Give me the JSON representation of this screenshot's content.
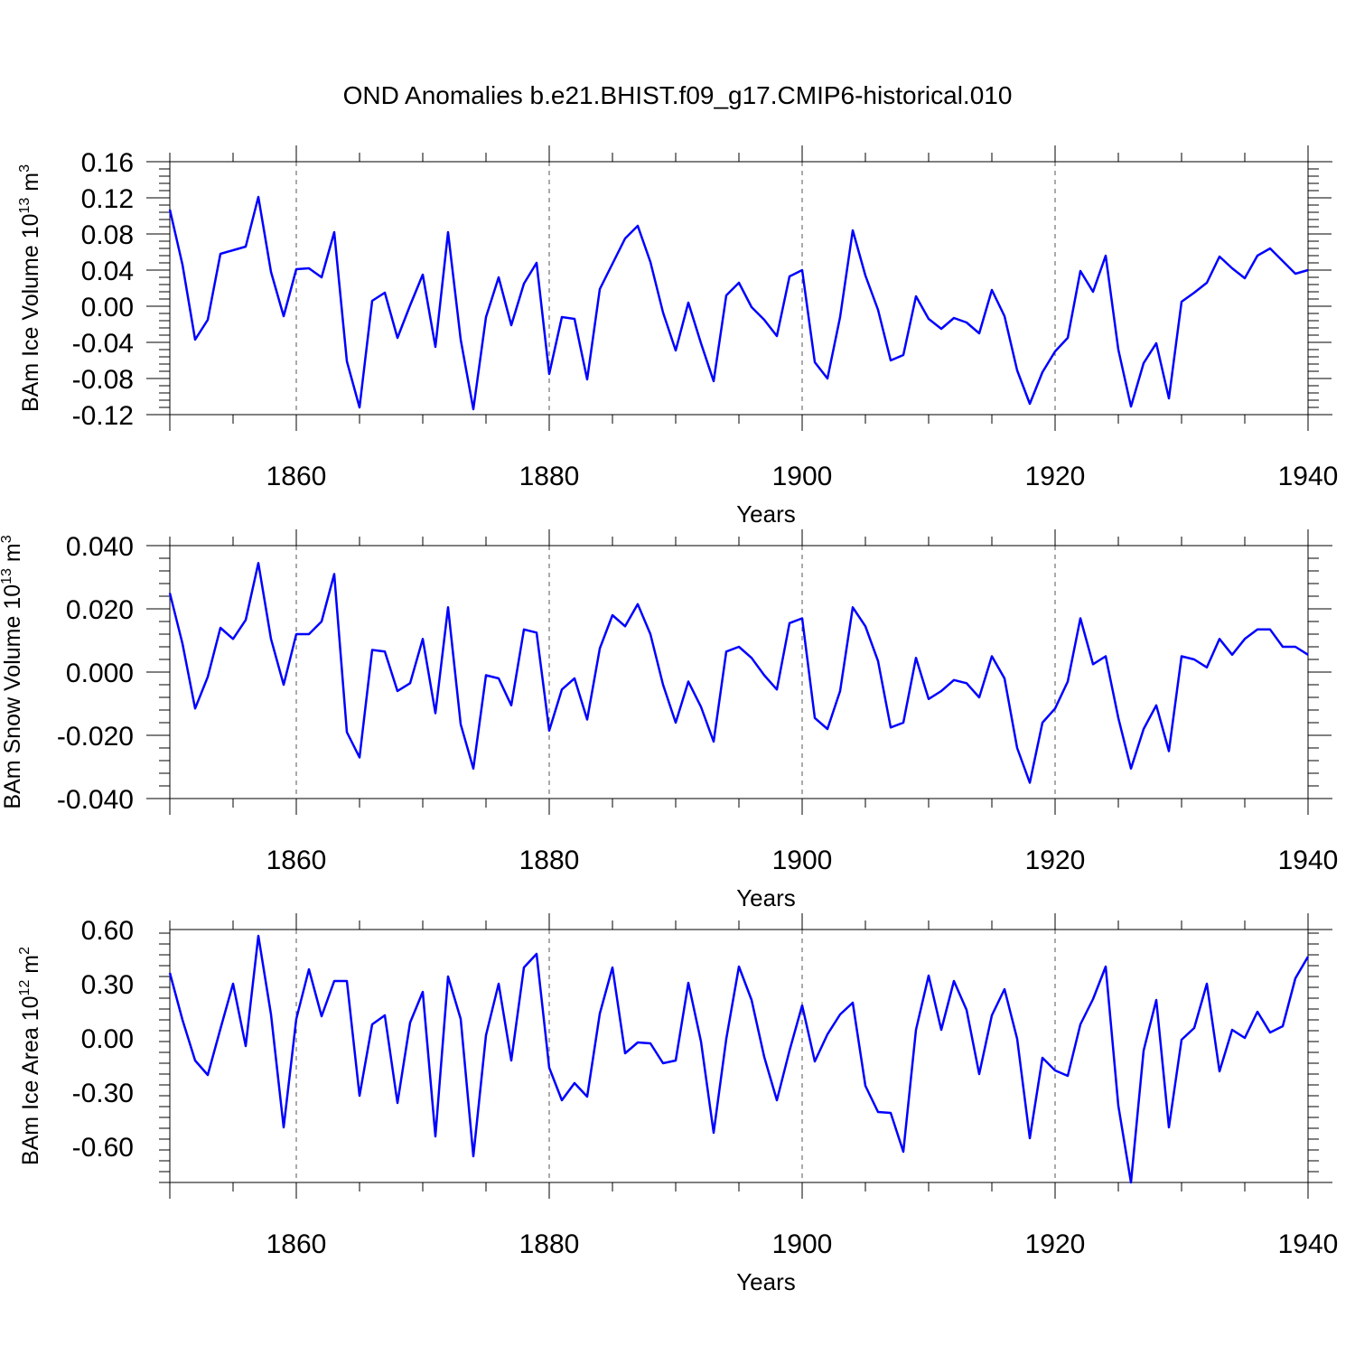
{
  "figure_title": "OND Anomalies b.e21.BHIST.f09_g17.CMIP6-historical.010",
  "colors": {
    "line": "#0000ff",
    "axis": "#000000",
    "grid": "#555555"
  },
  "chart_data": [
    {
      "type": "line",
      "ylabel": "BAm Ice Volume",
      "ylabel_unit": "10",
      "ylabel_exp": "13",
      "ylabel_unit2": "m",
      "ylabel_exp2": "3",
      "xlabel": "Years",
      "xlim": [
        1850,
        1940
      ],
      "ylim": [
        -0.12,
        0.16
      ],
      "xticks": [
        1860,
        1880,
        1900,
        1920,
        1940
      ],
      "xtick_labels": [
        "1860",
        "1880",
        "1900",
        "1920",
        "1940"
      ],
      "yticks": [
        -0.12,
        -0.08,
        -0.04,
        0.0,
        0.04,
        0.08,
        0.12,
        0.16
      ],
      "ytick_labels": [
        "-0.12",
        "-0.08",
        "-0.04",
        "0.00",
        "0.04",
        "0.08",
        "0.12",
        "0.16"
      ],
      "grid_x": true,
      "x": [
        1850,
        1851,
        1852,
        1853,
        1854,
        1855,
        1856,
        1857,
        1858,
        1859,
        1860,
        1861,
        1862,
        1863,
        1864,
        1865,
        1866,
        1867,
        1868,
        1869,
        1870,
        1871,
        1872,
        1873,
        1874,
        1875,
        1876,
        1877,
        1878,
        1879,
        1880,
        1881,
        1882,
        1883,
        1884,
        1885,
        1886,
        1887,
        1888,
        1889,
        1890,
        1891,
        1892,
        1893,
        1894,
        1895,
        1896,
        1897,
        1898,
        1899,
        1900,
        1901,
        1902,
        1903,
        1904,
        1905,
        1906,
        1907,
        1908,
        1909,
        1910,
        1911,
        1912,
        1913,
        1914,
        1915,
        1916,
        1917,
        1918,
        1919,
        1920,
        1921,
        1922,
        1923,
        1924,
        1925,
        1926,
        1927,
        1928,
        1929,
        1930,
        1931,
        1932,
        1933,
        1934,
        1935,
        1936,
        1937,
        1938,
        1939,
        1940
      ],
      "values": [
        0.107,
        0.046,
        -0.037,
        -0.015,
        0.058,
        0.062,
        0.066,
        0.121,
        0.038,
        -0.011,
        0.041,
        0.042,
        0.032,
        0.082,
        -0.061,
        -0.112,
        0.006,
        0.015,
        -0.035,
        0.001,
        0.035,
        -0.045,
        0.082,
        -0.037,
        -0.114,
        -0.012,
        0.032,
        -0.021,
        0.025,
        0.048,
        -0.075,
        -0.012,
        -0.014,
        -0.081,
        0.019,
        0.047,
        0.075,
        0.089,
        0.049,
        -0.007,
        -0.049,
        0.004,
        -0.041,
        -0.083,
        0.012,
        0.026,
        -0.001,
        -0.015,
        -0.033,
        0.033,
        0.04,
        -0.062,
        -0.08,
        -0.012,
        0.084,
        0.034,
        -0.004,
        -0.06,
        -0.054,
        0.011,
        -0.014,
        -0.025,
        -0.013,
        -0.018,
        -0.03,
        0.018,
        -0.011,
        -0.071,
        -0.108,
        -0.073,
        -0.05,
        -0.035,
        0.039,
        0.016,
        0.056,
        -0.048,
        -0.111,
        -0.063,
        -0.041,
        -0.102,
        0.005,
        0.015,
        0.026,
        0.055,
        0.042,
        0.031,
        0.056,
        0.064,
        0.05,
        0.036,
        0.04
      ]
    },
    {
      "type": "line",
      "ylabel": "BAm Snow Volume",
      "ylabel_unit": "10",
      "ylabel_exp": "13",
      "ylabel_unit2": "m",
      "ylabel_exp2": "3",
      "xlabel": "Years",
      "xlim": [
        1850,
        1940
      ],
      "ylim": [
        -0.04,
        0.04
      ],
      "xticks": [
        1860,
        1880,
        1900,
        1920,
        1940
      ],
      "xtick_labels": [
        "1860",
        "1880",
        "1900",
        "1920",
        "1940"
      ],
      "yticks": [
        -0.04,
        -0.02,
        0.0,
        0.02,
        0.04
      ],
      "ytick_labels": [
        "-0.040",
        "-0.020",
        "0.000",
        "0.020",
        "0.040"
      ],
      "grid_x": true,
      "x": [
        1850,
        1851,
        1852,
        1853,
        1854,
        1855,
        1856,
        1857,
        1858,
        1859,
        1860,
        1861,
        1862,
        1863,
        1864,
        1865,
        1866,
        1867,
        1868,
        1869,
        1870,
        1871,
        1872,
        1873,
        1874,
        1875,
        1876,
        1877,
        1878,
        1879,
        1880,
        1881,
        1882,
        1883,
        1884,
        1885,
        1886,
        1887,
        1888,
        1889,
        1890,
        1891,
        1892,
        1893,
        1894,
        1895,
        1896,
        1897,
        1898,
        1899,
        1900,
        1901,
        1902,
        1903,
        1904,
        1905,
        1906,
        1907,
        1908,
        1909,
        1910,
        1911,
        1912,
        1913,
        1914,
        1915,
        1916,
        1917,
        1918,
        1919,
        1920,
        1921,
        1922,
        1923,
        1924,
        1925,
        1926,
        1927,
        1928,
        1929,
        1930,
        1931,
        1932,
        1933,
        1934,
        1935,
        1936,
        1937,
        1938,
        1939,
        1940
      ],
      "values": [
        0.025,
        0.009,
        -0.0115,
        -0.0015,
        0.014,
        0.0105,
        0.0165,
        0.0345,
        0.0105,
        -0.004,
        0.012,
        0.012,
        0.016,
        0.031,
        -0.019,
        -0.027,
        0.007,
        0.0065,
        -0.006,
        -0.0035,
        0.0105,
        -0.013,
        0.0205,
        -0.0165,
        -0.0305,
        -0.001,
        -0.002,
        -0.0105,
        0.0135,
        0.0125,
        -0.0185,
        -0.0055,
        -0.002,
        -0.015,
        0.0075,
        0.018,
        0.0145,
        0.0215,
        0.012,
        -0.004,
        -0.016,
        -0.003,
        -0.011,
        -0.022,
        0.0065,
        0.008,
        0.0045,
        -0.001,
        -0.0055,
        0.0155,
        0.017,
        -0.0145,
        -0.018,
        -0.006,
        0.0205,
        0.0145,
        0.0035,
        -0.0175,
        -0.016,
        0.0045,
        -0.0085,
        -0.006,
        -0.0025,
        -0.0035,
        -0.008,
        0.005,
        -0.002,
        -0.024,
        -0.035,
        -0.016,
        -0.0115,
        -0.003,
        0.017,
        0.0025,
        0.005,
        -0.0145,
        -0.0305,
        -0.018,
        -0.0105,
        -0.025,
        0.005,
        0.004,
        0.0015,
        0.0105,
        0.0055,
        0.0105,
        0.0135,
        0.0135,
        0.008,
        0.008,
        0.0055
      ]
    },
    {
      "type": "line",
      "ylabel": "BAm Ice Area",
      "ylabel_unit": "10",
      "ylabel_exp": "12",
      "ylabel_unit2": "m",
      "ylabel_exp2": "2",
      "xlabel": "Years",
      "xlim": [
        1850,
        1940
      ],
      "ylim": [
        -0.8,
        0.6
      ],
      "xticks": [
        1860,
        1880,
        1900,
        1920,
        1940
      ],
      "xtick_labels": [
        "1860",
        "1880",
        "1900",
        "1920",
        "1940"
      ],
      "yticks": [
        -0.6,
        -0.3,
        0.0,
        0.3,
        0.6
      ],
      "ytick_labels": [
        "-0.60",
        "-0.30",
        "0.00",
        "0.30",
        "0.60"
      ],
      "grid_x": true,
      "x": [
        1850,
        1851,
        1852,
        1853,
        1854,
        1855,
        1856,
        1857,
        1858,
        1859,
        1860,
        1861,
        1862,
        1863,
        1864,
        1865,
        1866,
        1867,
        1868,
        1869,
        1870,
        1871,
        1872,
        1873,
        1874,
        1875,
        1876,
        1877,
        1878,
        1879,
        1880,
        1881,
        1882,
        1883,
        1884,
        1885,
        1886,
        1887,
        1888,
        1889,
        1890,
        1891,
        1892,
        1893,
        1894,
        1895,
        1896,
        1897,
        1898,
        1899,
        1900,
        1901,
        1902,
        1903,
        1904,
        1905,
        1906,
        1907,
        1908,
        1909,
        1910,
        1911,
        1912,
        1913,
        1914,
        1915,
        1916,
        1917,
        1918,
        1919,
        1920,
        1921,
        1922,
        1923,
        1924,
        1925,
        1926,
        1927,
        1928,
        1929,
        1930,
        1931,
        1932,
        1933,
        1934,
        1935,
        1936,
        1937,
        1938,
        1939,
        1940
      ],
      "values": [
        0.36,
        0.1,
        -0.125,
        -0.205,
        0.05,
        0.3,
        -0.045,
        0.565,
        0.13,
        -0.495,
        0.105,
        0.38,
        0.12,
        0.315,
        0.315,
        -0.32,
        0.075,
        0.125,
        -0.36,
        0.085,
        0.255,
        -0.545,
        0.34,
        0.105,
        -0.655,
        0.015,
        0.3,
        -0.125,
        0.39,
        0.465,
        -0.165,
        -0.345,
        -0.25,
        -0.325,
        0.135,
        0.39,
        -0.085,
        -0.025,
        -0.03,
        -0.14,
        -0.125,
        0.305,
        -0.02,
        -0.525,
        -0.005,
        0.395,
        0.21,
        -0.105,
        -0.345,
        -0.07,
        0.18,
        -0.13,
        0.02,
        0.13,
        0.195,
        -0.265,
        -0.41,
        -0.415,
        -0.63,
        0.045,
        0.345,
        0.045,
        0.315,
        0.155,
        -0.2,
        0.125,
        0.27,
        -0.005,
        -0.555,
        -0.11,
        -0.18,
        -0.21,
        0.075,
        0.215,
        0.395,
        -0.375,
        -0.8,
        -0.07,
        0.21,
        -0.495,
        -0.01,
        0.055,
        0.3,
        -0.185,
        0.045,
        0.0,
        0.145,
        0.03,
        0.065,
        0.33,
        0.45
      ]
    }
  ]
}
